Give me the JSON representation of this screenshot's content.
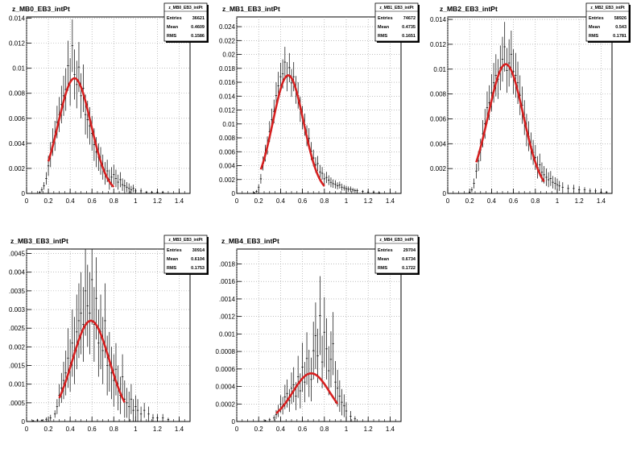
{
  "chart_data": [
    {
      "type": "histogram",
      "title": "z_MB0_EB3_intPt",
      "xlim": [
        0,
        1.5
      ],
      "ylim": [
        0,
        0.0141
      ],
      "xticks": [
        0,
        0.2,
        0.4,
        0.6,
        0.8,
        1,
        1.2,
        1.4
      ],
      "yticks": [
        0.002,
        0.004,
        0.006,
        0.008,
        0.01,
        0.012,
        0.014
      ],
      "ytick_labels": [
        "0.002",
        "0.004",
        "0.006",
        "0.008",
        "0.01",
        "0.012",
        "0.014"
      ],
      "stats": {
        "name": "z_MB0_EB3_intPt",
        "entries": "36621",
        "mean": "0.4609",
        "rms": "0.1586"
      },
      "fit": {
        "amplitude": 0.0092,
        "mean": 0.44,
        "sigma": 0.15,
        "range": [
          0.2,
          0.8
        ]
      },
      "data": {
        "x": [
          0.12,
          0.14,
          0.16,
          0.18,
          0.2,
          0.22,
          0.24,
          0.26,
          0.28,
          0.3,
          0.32,
          0.34,
          0.36,
          0.38,
          0.4,
          0.42,
          0.44,
          0.46,
          0.48,
          0.5,
          0.52,
          0.54,
          0.56,
          0.58,
          0.6,
          0.62,
          0.64,
          0.66,
          0.68,
          0.7,
          0.72,
          0.74,
          0.76,
          0.78,
          0.8,
          0.82,
          0.84,
          0.86,
          0.88,
          0.9,
          0.92,
          0.94,
          0.96,
          0.98,
          1.0,
          1.05,
          1.1,
          1.15,
          1.2,
          1.25
        ],
        "y": [
          0.0001,
          0.0003,
          0.0006,
          0.0012,
          0.0022,
          0.0031,
          0.0041,
          0.0046,
          0.0057,
          0.0063,
          0.0071,
          0.0078,
          0.0083,
          0.0102,
          0.0089,
          0.0118,
          0.0095,
          0.0087,
          0.0101,
          0.0078,
          0.0084,
          0.0063,
          0.0059,
          0.0054,
          0.0048,
          0.0039,
          0.0033,
          0.0029,
          0.0026,
          0.0021,
          0.0016,
          0.0018,
          0.0011,
          0.0013,
          0.0015,
          0.0012,
          0.0009,
          0.0011,
          0.0007,
          0.0006,
          0.0005,
          0.0004,
          0.0003,
          0.0004,
          0.0002,
          0.0002,
          0.0001,
          0.0001,
          0.0001,
          0.0001
        ],
        "err": [
          0.0001,
          0.0002,
          0.0003,
          0.0005,
          0.0008,
          0.001,
          0.0011,
          0.0012,
          0.0013,
          0.0014,
          0.0015,
          0.0016,
          0.0017,
          0.002,
          0.0019,
          0.0021,
          0.002,
          0.0019,
          0.002,
          0.0018,
          0.0019,
          0.0016,
          0.0015,
          0.0015,
          0.0014,
          0.0013,
          0.0012,
          0.0011,
          0.0011,
          0.001,
          0.0009,
          0.0009,
          0.0008,
          0.0008,
          0.0008,
          0.0007,
          0.0006,
          0.0006,
          0.0005,
          0.0005,
          0.0004,
          0.0004,
          0.0003,
          0.0003,
          0.0002,
          0.0002,
          0.0001,
          0.0001,
          0.0001,
          0.0001
        ]
      }
    },
    {
      "type": "histogram",
      "title": "z_MB1_EB3_intPt",
      "xlim": [
        0,
        1.5
      ],
      "ylim": [
        0,
        0.0254
      ],
      "xticks": [
        0,
        0.2,
        0.4,
        0.6,
        0.8,
        1,
        1.2,
        1.4
      ],
      "yticks": [
        0.002,
        0.004,
        0.006,
        0.008,
        0.01,
        0.012,
        0.014,
        0.016,
        0.018,
        0.02,
        0.022,
        0.024
      ],
      "ytick_labels": [
        "0.002",
        "0.004",
        "0.006",
        "0.008",
        "0.01",
        "0.012",
        "0.014",
        "0.016",
        "0.018",
        "0.02",
        "0.022",
        "0.024"
      ],
      "stats": {
        "name": "z_MB1_EB3_intPt",
        "entries": "74672",
        "mean": "0.4735",
        "rms": "0.1651"
      },
      "fit": {
        "amplitude": 0.017,
        "mean": 0.47,
        "sigma": 0.14,
        "range": [
          0.22,
          0.8
        ]
      },
      "data": {
        "x": [
          0.16,
          0.18,
          0.2,
          0.22,
          0.24,
          0.26,
          0.28,
          0.3,
          0.32,
          0.34,
          0.36,
          0.38,
          0.4,
          0.42,
          0.44,
          0.46,
          0.48,
          0.5,
          0.52,
          0.54,
          0.56,
          0.58,
          0.6,
          0.62,
          0.64,
          0.66,
          0.68,
          0.7,
          0.72,
          0.74,
          0.76,
          0.78,
          0.8,
          0.82,
          0.84,
          0.86,
          0.88,
          0.9,
          0.92,
          0.94,
          0.96,
          0.98,
          1.0,
          1.02,
          1.04,
          1.06,
          1.08,
          1.1,
          1.15,
          1.2,
          1.25,
          1.3
        ],
        "y": [
          0.0001,
          0.0003,
          0.0009,
          0.0021,
          0.0043,
          0.0058,
          0.0069,
          0.0089,
          0.0106,
          0.0118,
          0.0141,
          0.0155,
          0.0168,
          0.0172,
          0.0189,
          0.0168,
          0.0181,
          0.0159,
          0.0168,
          0.0149,
          0.0141,
          0.0121,
          0.0109,
          0.0099,
          0.0083,
          0.0079,
          0.0061,
          0.0051,
          0.0041,
          0.0043,
          0.0031,
          0.0029,
          0.0021,
          0.0023,
          0.0019,
          0.0016,
          0.0014,
          0.0013,
          0.0011,
          0.0012,
          0.0009,
          0.0008,
          0.0007,
          0.0006,
          0.0006,
          0.0005,
          0.0004,
          0.0004,
          0.0003,
          0.0002,
          0.0002,
          0.0001
        ],
        "err": [
          0.0001,
          0.0002,
          0.0004,
          0.0007,
          0.001,
          0.0012,
          0.0013,
          0.0015,
          0.0016,
          0.0017,
          0.0019,
          0.002,
          0.002,
          0.0021,
          0.0022,
          0.0021,
          0.0021,
          0.002,
          0.0021,
          0.002,
          0.0019,
          0.0018,
          0.0017,
          0.0016,
          0.0015,
          0.0015,
          0.0013,
          0.0012,
          0.0011,
          0.0011,
          0.001,
          0.0009,
          0.0008,
          0.0008,
          0.0007,
          0.0007,
          0.0006,
          0.0006,
          0.0005,
          0.0005,
          0.0005,
          0.0004,
          0.0004,
          0.0004,
          0.0004,
          0.0003,
          0.0003,
          0.0003,
          0.0002,
          0.0002,
          0.0002,
          0.0001
        ]
      }
    },
    {
      "type": "histogram",
      "title": "z_MB2_EB3_intPt",
      "xlim": [
        0,
        1.5
      ],
      "ylim": [
        0,
        0.0142
      ],
      "xticks": [
        0,
        0.2,
        0.4,
        0.6,
        0.8,
        1,
        1.2,
        1.4
      ],
      "yticks": [
        0.002,
        0.004,
        0.006,
        0.008,
        0.01,
        0.012,
        0.014
      ],
      "ytick_labels": [
        "0.002",
        "0.004",
        "0.006",
        "0.008",
        "0.01",
        "0.012",
        "0.014"
      ],
      "stats": {
        "name": "z_MB2_EB3_intPt",
        "entries": "58926",
        "mean": "0.543",
        "rms": "0.1781"
      },
      "fit": {
        "amplitude": 0.0104,
        "mean": 0.53,
        "sigma": 0.16,
        "range": [
          0.26,
          0.88
        ]
      },
      "data": {
        "x": [
          0.2,
          0.22,
          0.24,
          0.26,
          0.28,
          0.3,
          0.32,
          0.34,
          0.36,
          0.38,
          0.4,
          0.42,
          0.44,
          0.46,
          0.48,
          0.5,
          0.52,
          0.54,
          0.56,
          0.58,
          0.6,
          0.62,
          0.64,
          0.66,
          0.68,
          0.7,
          0.72,
          0.74,
          0.76,
          0.78,
          0.8,
          0.82,
          0.84,
          0.86,
          0.88,
          0.9,
          0.92,
          0.94,
          0.96,
          0.98,
          1.0,
          1.02,
          1.05,
          1.1,
          1.15,
          1.2,
          1.25,
          1.3,
          1.35,
          1.4,
          1.45
        ],
        "y": [
          0.0001,
          0.0003,
          0.0008,
          0.0018,
          0.0026,
          0.0035,
          0.0048,
          0.0056,
          0.0069,
          0.0073,
          0.0081,
          0.0089,
          0.0095,
          0.0092,
          0.0101,
          0.0108,
          0.0118,
          0.0099,
          0.0105,
          0.0112,
          0.0098,
          0.0095,
          0.0089,
          0.0079,
          0.0071,
          0.0061,
          0.0051,
          0.0046,
          0.0038,
          0.0033,
          0.0029,
          0.0021,
          0.0023,
          0.0017,
          0.0015,
          0.0013,
          0.0011,
          0.0012,
          0.0009,
          0.0008,
          0.0007,
          0.0006,
          0.0005,
          0.0004,
          0.0004,
          0.0003,
          0.0003,
          0.0002,
          0.0002,
          0.0001,
          0.0001
        ],
        "err": [
          0.0001,
          0.0002,
          0.0004,
          0.0006,
          0.0008,
          0.0009,
          0.0011,
          0.0012,
          0.0013,
          0.0014,
          0.0015,
          0.0016,
          0.0017,
          0.0016,
          0.0018,
          0.0018,
          0.002,
          0.0018,
          0.0019,
          0.0019,
          0.0018,
          0.0018,
          0.0017,
          0.0016,
          0.0015,
          0.0014,
          0.0013,
          0.0012,
          0.0011,
          0.001,
          0.001,
          0.0009,
          0.0009,
          0.0008,
          0.0007,
          0.0007,
          0.0006,
          0.0006,
          0.0005,
          0.0005,
          0.0005,
          0.0004,
          0.0004,
          0.0003,
          0.0003,
          0.0003,
          0.0002,
          0.0002,
          0.0002,
          0.0001,
          0.0001
        ]
      }
    },
    {
      "type": "histogram",
      "title": "z_MB3_EB3_intPt",
      "xlim": [
        0,
        1.5
      ],
      "ylim": [
        0,
        0.00462
      ],
      "xticks": [
        0,
        0.2,
        0.4,
        0.6,
        0.8,
        1,
        1.2,
        1.4
      ],
      "yticks": [
        0.0005,
        0.001,
        0.0015,
        0.002,
        0.0025,
        0.003,
        0.0035,
        0.004,
        0.0045
      ],
      "ytick_labels": [
        ".0005",
        "0.001",
        ".0015",
        "0.002",
        ".0025",
        "0.003",
        ".0035",
        "0.004",
        ".0045"
      ],
      "stats": {
        "name": "z_MB3_EB3_intPt",
        "entries": "30914",
        "mean": "0.6104",
        "rms": "0.1753"
      },
      "fit": {
        "amplitude": 0.0027,
        "mean": 0.59,
        "sigma": 0.17,
        "range": [
          0.3,
          0.9
        ]
      },
      "data": {
        "x": [
          0.06,
          0.1,
          0.14,
          0.18,
          0.22,
          0.26,
          0.28,
          0.3,
          0.32,
          0.34,
          0.36,
          0.38,
          0.4,
          0.42,
          0.44,
          0.46,
          0.48,
          0.5,
          0.52,
          0.54,
          0.56,
          0.58,
          0.6,
          0.62,
          0.64,
          0.66,
          0.68,
          0.7,
          0.72,
          0.74,
          0.76,
          0.78,
          0.8,
          0.82,
          0.84,
          0.86,
          0.88,
          0.9,
          0.92,
          0.94,
          0.96,
          0.98,
          1.0,
          1.02,
          1.05,
          1.08,
          1.12,
          1.16,
          1.2,
          1.25,
          1.3
        ],
        "y": [
          2e-05,
          4e-05,
          3e-05,
          6e-05,
          0.0001,
          0.0002,
          0.0004,
          0.0007,
          0.0009,
          0.0011,
          0.0013,
          0.0017,
          0.0015,
          0.0021,
          0.0019,
          0.0024,
          0.0027,
          0.0029,
          0.0026,
          0.0035,
          0.0031,
          0.0029,
          0.0038,
          0.0026,
          0.0033,
          0.0021,
          0.0024,
          0.0019,
          0.0027,
          0.0015,
          0.0016,
          0.0013,
          0.0011,
          0.0014,
          0.0009,
          0.0007,
          0.0012,
          0.0006,
          0.0005,
          0.0004,
          0.0006,
          0.0003,
          0.0004,
          0.0003,
          0.0002,
          0.0003,
          0.0002,
          0.0001,
          0.0001,
          0.0001,
          5e-05
        ],
        "err": [
          2e-05,
          3e-05,
          3e-05,
          5e-05,
          8e-05,
          0.0001,
          0.0002,
          0.0003,
          0.0004,
          0.0005,
          0.0006,
          0.0008,
          0.0007,
          0.0009,
          0.0009,
          0.001,
          0.001,
          0.0011,
          0.001,
          0.0012,
          0.0011,
          0.0011,
          0.0012,
          0.001,
          0.0011,
          0.0009,
          0.001,
          0.0009,
          0.001,
          0.0008,
          0.0008,
          0.0007,
          0.0007,
          0.0007,
          0.0006,
          0.0005,
          0.0006,
          0.0005,
          0.0004,
          0.0004,
          0.0004,
          0.0003,
          0.0003,
          0.0003,
          0.0002,
          0.0002,
          0.0002,
          0.0001,
          0.0001,
          0.0001,
          5e-05
        ]
      }
    },
    {
      "type": "histogram",
      "title": "z_MB4_EB3_intPt",
      "xlim": [
        0,
        1.5
      ],
      "ylim": [
        0,
        0.00197
      ],
      "xticks": [
        0,
        0.2,
        0.4,
        0.6,
        0.8,
        1,
        1.2,
        1.4
      ],
      "yticks": [
        0.0002,
        0.0004,
        0.0006,
        0.0008,
        0.001,
        0.0012,
        0.0014,
        0.0016,
        0.0018
      ],
      "ytick_labels": [
        "0.0002",
        "0.0004",
        "0.0006",
        "0.0008",
        "0.001",
        ".0012",
        ".0014",
        ".0016",
        ".0018"
      ],
      "stats": {
        "name": "z_MB4_EB3_intPt",
        "entries": "29704",
        "mean": "0.6734",
        "rms": "0.1722"
      },
      "fit": {
        "amplitude": 0.00055,
        "mean": 0.68,
        "sigma": 0.17,
        "range": [
          0.36,
          0.92
        ]
      },
      "data": {
        "x": [
          0.26,
          0.3,
          0.34,
          0.36,
          0.38,
          0.4,
          0.42,
          0.44,
          0.46,
          0.48,
          0.5,
          0.52,
          0.54,
          0.56,
          0.58,
          0.6,
          0.62,
          0.64,
          0.66,
          0.68,
          0.7,
          0.72,
          0.74,
          0.76,
          0.78,
          0.8,
          0.82,
          0.84,
          0.86,
          0.88,
          0.9,
          0.92,
          0.94,
          0.96,
          0.98,
          1.0,
          1.04,
          1.08
        ],
        "y": [
          1e-05,
          2e-05,
          4e-05,
          8e-05,
          0.00012,
          0.0002,
          0.00018,
          0.00028,
          0.00032,
          0.00024,
          0.00038,
          0.00042,
          0.00029,
          0.00051,
          0.00035,
          0.00062,
          0.00045,
          0.00072,
          0.00055,
          0.00048,
          0.00081,
          0.00098,
          0.00075,
          0.00121,
          0.00068,
          0.00102,
          0.00083,
          0.00058,
          0.00071,
          0.00089,
          0.00045,
          0.00038,
          0.00029,
          0.00022,
          0.00018,
          0.00012,
          6e-05,
          3e-05
        ],
        "err": [
          1e-05,
          2e-05,
          3e-05,
          5e-05,
          7e-05,
          0.0001,
          0.0001,
          0.00014,
          0.00016,
          0.00013,
          0.00018,
          0.0002,
          0.00016,
          0.00024,
          0.0002,
          0.00028,
          0.00023,
          0.0003,
          0.00027,
          0.00025,
          0.00033,
          0.00038,
          0.00031,
          0.00045,
          0.0003,
          0.0004,
          0.00035,
          0.00028,
          0.00032,
          0.00036,
          0.00024,
          0.00021,
          0.00018,
          0.00015,
          0.00013,
          0.0001,
          6e-05,
          3e-05
        ]
      }
    }
  ]
}
